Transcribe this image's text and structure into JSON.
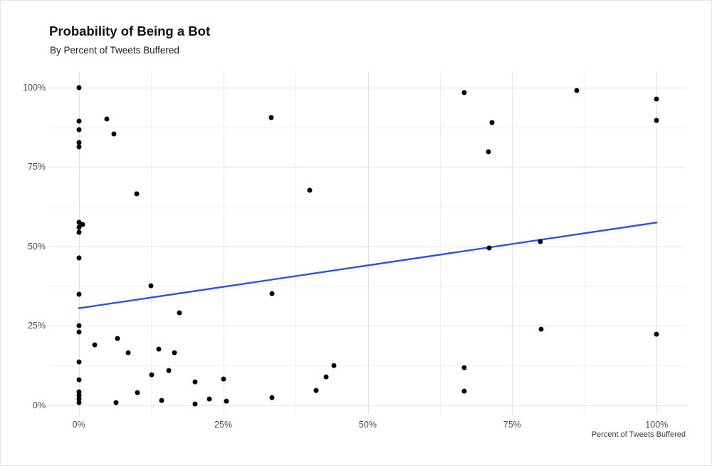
{
  "header": {
    "title": "Probability of Being a Bot",
    "subtitle": "By Percent of Tweets Buffered"
  },
  "chart_data": {
    "type": "scatter",
    "title": "Probability of Being a Bot",
    "subtitle": "By Percent of Tweets Buffered",
    "xlabel": "Percent of Tweets Buffered",
    "ylabel": "",
    "xlim": [
      0,
      100
    ],
    "ylim": [
      0,
      100
    ],
    "x_tick_values": [
      0,
      25,
      50,
      75,
      100
    ],
    "x_tick_labels": [
      "0%",
      "25%",
      "50%",
      "75%",
      "100%"
    ],
    "y_tick_values": [
      0,
      25,
      50,
      75,
      100
    ],
    "y_tick_labels": [
      "0%",
      "25%",
      "50%",
      "75%",
      "100%"
    ],
    "minor_tick_values": [
      12.5,
      37.5,
      62.5,
      87.5
    ],
    "grid": "major and minor gridlines, light gray on white",
    "legend": "none",
    "points": [
      [
        0,
        100
      ],
      [
        0,
        89.5
      ],
      [
        0,
        86.8
      ],
      [
        0,
        82.8
      ],
      [
        0,
        81.4
      ],
      [
        0,
        57.6
      ],
      [
        0.7,
        57
      ],
      [
        0,
        56
      ],
      [
        0,
        54.4
      ],
      [
        0,
        46.3
      ],
      [
        0,
        34.8
      ],
      [
        0,
        25
      ],
      [
        0,
        23.1
      ],
      [
        0,
        13.6
      ],
      [
        0,
        8
      ],
      [
        0,
        4.2
      ],
      [
        0,
        3
      ],
      [
        0,
        1.8
      ],
      [
        0,
        0.7
      ],
      [
        4.9,
        90.1
      ],
      [
        6.1,
        85.3
      ],
      [
        10,
        66.5
      ],
      [
        2.8,
        19
      ],
      [
        6.7,
        21
      ],
      [
        8.5,
        16.6
      ],
      [
        12.5,
        37.7
      ],
      [
        13.8,
        17.6
      ],
      [
        16.6,
        16.6
      ],
      [
        17.4,
        29
      ],
      [
        15.6,
        10.9
      ],
      [
        12.6,
        9.5
      ],
      [
        10.1,
        4
      ],
      [
        6.4,
        0.8
      ],
      [
        14.3,
        1.4
      ],
      [
        20.1,
        7.3
      ],
      [
        20.1,
        0.4
      ],
      [
        22.6,
        1.9
      ],
      [
        25.1,
        8.3
      ],
      [
        25.6,
        1.3
      ],
      [
        33.4,
        35.1
      ],
      [
        33.4,
        2.3
      ],
      [
        33.3,
        90.6
      ],
      [
        40,
        67.7
      ],
      [
        41.1,
        4.6
      ],
      [
        42.8,
        8.8
      ],
      [
        44.1,
        12.4
      ],
      [
        66.7,
        98.5
      ],
      [
        66.7,
        11.8
      ],
      [
        66.7,
        4.4
      ],
      [
        71.5,
        88.9
      ],
      [
        70.9,
        79.9
      ],
      [
        71,
        49.6
      ],
      [
        79.9,
        51.5
      ],
      [
        80,
        23.9
      ],
      [
        86.2,
        99
      ],
      [
        100,
        96.4
      ],
      [
        100,
        89.6
      ],
      [
        100,
        22.4
      ]
    ],
    "trend_line": {
      "shape": "linear",
      "x_start": 0,
      "y_start": 30.5,
      "x_end": 100,
      "y_end": 57.5
    },
    "colors": {
      "point": "#000000",
      "trend": "#2E53E2",
      "gridline_major": "#E2E2E2",
      "gridline_minor": "#EFEFEF",
      "background": "#FFFFFF",
      "tick_text": "#4D4D4D"
    }
  }
}
